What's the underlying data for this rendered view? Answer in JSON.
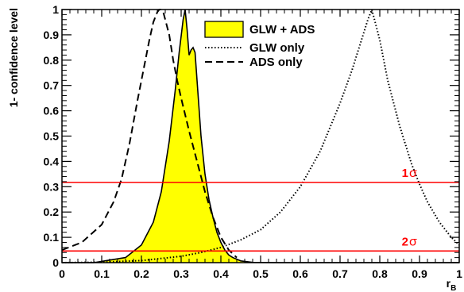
{
  "chart_data": {
    "type": "line",
    "title": "",
    "xlabel": "r_B",
    "ylabel": "1- confidence level",
    "xlim": [
      0,
      1
    ],
    "ylim": [
      0,
      1
    ],
    "x_ticks": [
      "0",
      "0.1",
      "0.2",
      "0.3",
      "0.4",
      "0.5",
      "0.6",
      "0.7",
      "0.8",
      "0.9",
      "1"
    ],
    "y_ticks": [
      "0",
      "0.1",
      "0.2",
      "0.3",
      "0.4",
      "0.5",
      "0.6",
      "0.7",
      "0.8",
      "0.9",
      "1"
    ],
    "legend_position": "top-center",
    "reference_lines": [
      {
        "label": "1",
        "symbol": "σ",
        "y": 0.317,
        "color": "#ff0000"
      },
      {
        "label": "2 ",
        "symbol": "σ",
        "y": 0.046,
        "color": "#ff0000"
      }
    ],
    "series": [
      {
        "name": "GLW + ADS",
        "style": "filled",
        "fill": "#ffff00",
        "stroke": "#000000",
        "x": [
          0.0,
          0.08,
          0.16,
          0.2,
          0.23,
          0.25,
          0.27,
          0.285,
          0.295,
          0.305,
          0.31,
          0.315,
          0.32,
          0.325,
          0.33,
          0.335,
          0.34,
          0.35,
          0.36,
          0.37,
          0.38,
          0.39,
          0.4,
          0.41,
          0.42,
          0.43,
          0.45,
          0.48,
          0.55,
          1.0
        ],
        "y": [
          0.0,
          0.0,
          0.02,
          0.07,
          0.16,
          0.28,
          0.48,
          0.68,
          0.83,
          0.96,
          1.0,
          0.92,
          0.82,
          0.84,
          0.85,
          0.83,
          0.72,
          0.5,
          0.35,
          0.25,
          0.18,
          0.12,
          0.08,
          0.05,
          0.03,
          0.02,
          0.007,
          0.001,
          0.0,
          0.0
        ]
      },
      {
        "name": "GLW only",
        "style": "dotted",
        "stroke": "#000000",
        "x": [
          0.0,
          0.1,
          0.2,
          0.3,
          0.35,
          0.4,
          0.45,
          0.5,
          0.55,
          0.6,
          0.65,
          0.7,
          0.73,
          0.75,
          0.77,
          0.78,
          0.8,
          0.82,
          0.85,
          0.88,
          0.9,
          0.92,
          0.95,
          0.98,
          1.0
        ],
        "y": [
          0.0,
          0.002,
          0.008,
          0.025,
          0.04,
          0.06,
          0.09,
          0.13,
          0.2,
          0.3,
          0.44,
          0.63,
          0.76,
          0.86,
          0.96,
          1.0,
          0.88,
          0.72,
          0.54,
          0.39,
          0.31,
          0.24,
          0.16,
          0.1,
          0.07
        ]
      },
      {
        "name": "ADS only",
        "style": "dashed",
        "stroke": "#000000",
        "x": [
          0.0,
          0.05,
          0.1,
          0.13,
          0.15,
          0.17,
          0.19,
          0.21,
          0.22,
          0.23,
          0.24,
          0.245,
          0.25,
          0.255,
          0.26,
          0.27,
          0.28,
          0.29,
          0.3,
          0.32,
          0.34,
          0.36,
          0.38,
          0.4,
          0.42,
          0.44
        ],
        "y": [
          0.05,
          0.08,
          0.15,
          0.24,
          0.33,
          0.47,
          0.64,
          0.8,
          0.88,
          0.95,
          0.99,
          1.0,
          1.0,
          0.99,
          0.96,
          0.9,
          0.8,
          0.72,
          0.65,
          0.52,
          0.4,
          0.28,
          0.18,
          0.1,
          0.05,
          0.02
        ]
      }
    ]
  }
}
